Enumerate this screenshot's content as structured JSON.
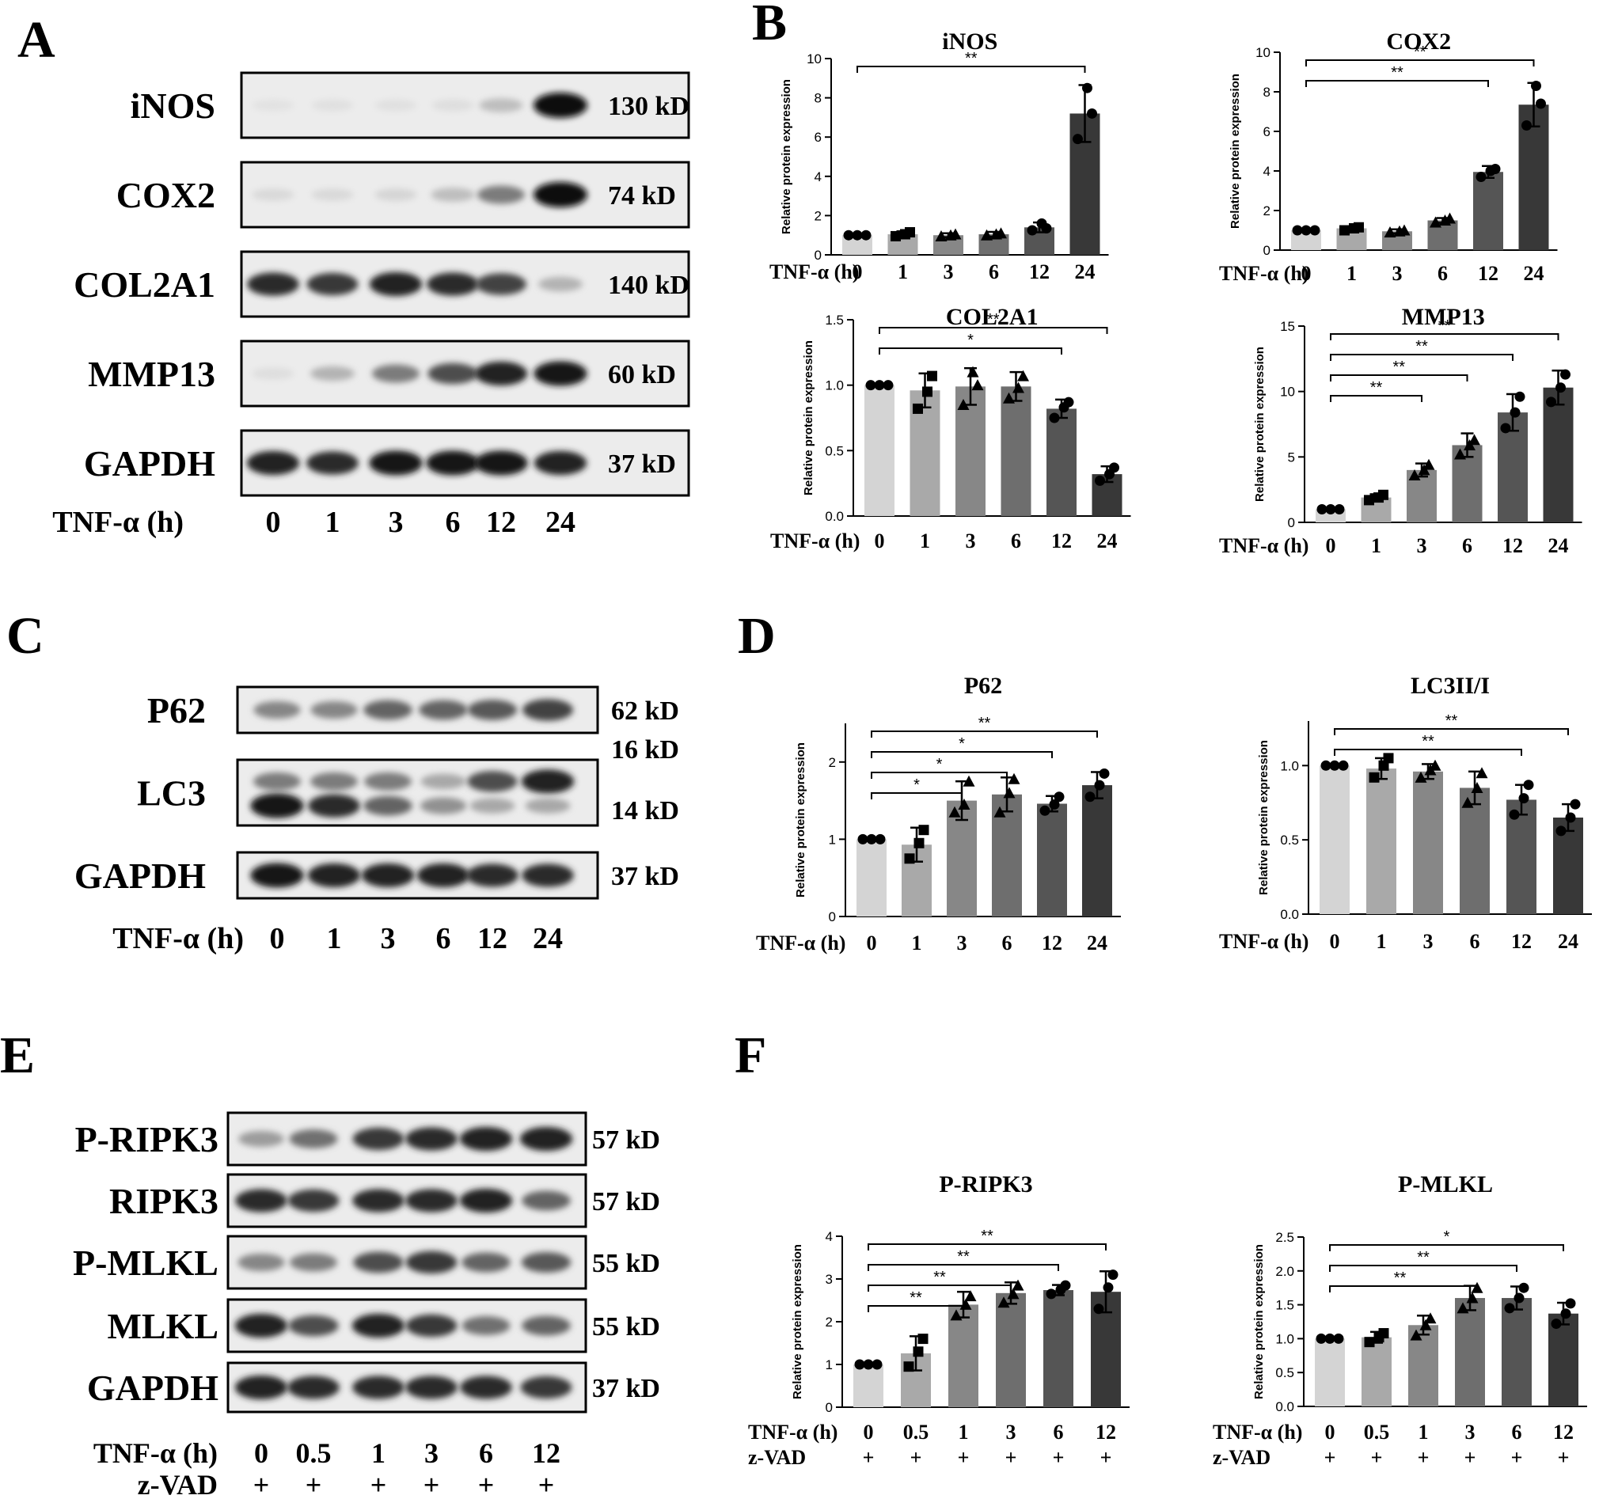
{
  "panel_letters": [
    "A",
    "B",
    "C",
    "D",
    "E",
    "F"
  ],
  "blots": [
    {
      "panel": "A",
      "rows": [
        {
          "label": "iNOS",
          "mw": [
            "130 kD"
          ],
          "bands": [
            [
              0.04,
              0.05,
              0.05,
              0.06,
              0.2,
              1.0
            ]
          ]
        },
        {
          "label": "COX2",
          "mw": [
            "74 kD"
          ],
          "bands": [
            [
              0.08,
              0.08,
              0.1,
              0.2,
              0.5,
              1.0
            ]
          ]
        },
        {
          "label": "COL2A1",
          "mw": [
            "140 kD"
          ],
          "bands": [
            [
              0.85,
              0.8,
              0.9,
              0.85,
              0.75,
              0.25
            ]
          ]
        },
        {
          "label": "MMP13",
          "mw": [
            "60 kD"
          ],
          "bands": [
            [
              0.06,
              0.25,
              0.5,
              0.7,
              0.9,
              0.95
            ]
          ]
        },
        {
          "label": "GAPDH",
          "mw": [
            "37 kD"
          ],
          "bands": [
            [
              0.9,
              0.85,
              0.95,
              0.95,
              0.95,
              0.9
            ]
          ]
        }
      ],
      "axis_labels": [
        {
          "name": "TNF-α (h)",
          "values": [
            "0",
            "1",
            "3",
            "6",
            "12",
            "24"
          ]
        }
      ]
    },
    {
      "panel": "C",
      "rows": [
        {
          "label": "P62",
          "mw": [
            "62 kD"
          ],
          "bands": [
            [
              0.45,
              0.45,
              0.6,
              0.6,
              0.65,
              0.75
            ]
          ]
        },
        {
          "label": "LC3",
          "mw": [
            "16 kD",
            "14 kD"
          ],
          "bands": [
            [
              0.5,
              0.5,
              0.5,
              0.3,
              0.7,
              0.9
            ],
            [
              0.95,
              0.85,
              0.6,
              0.4,
              0.3,
              0.3
            ]
          ]
        },
        {
          "label": "GAPDH",
          "mw": [
            "37 kD"
          ],
          "bands": [
            [
              0.95,
              0.9,
              0.9,
              0.9,
              0.85,
              0.85
            ]
          ]
        }
      ],
      "axis_labels": [
        {
          "name": "TNF-α (h)",
          "values": [
            "0",
            "1",
            "3",
            "6",
            "12",
            "24"
          ]
        }
      ]
    },
    {
      "panel": "E",
      "rows": [
        {
          "label": "P-RIPK3",
          "mw": [
            "57 kD"
          ],
          "bands": [
            [
              0.35,
              0.55,
              0.8,
              0.85,
              0.9,
              0.9
            ]
          ]
        },
        {
          "label": "RIPK3",
          "mw": [
            "57 kD"
          ],
          "bands": [
            [
              0.85,
              0.8,
              0.85,
              0.85,
              0.9,
              0.6
            ]
          ]
        },
        {
          "label": "P-MLKL",
          "mw": [
            "55 kD"
          ],
          "bands": [
            [
              0.45,
              0.5,
              0.7,
              0.8,
              0.6,
              0.65
            ]
          ]
        },
        {
          "label": "MLKL",
          "mw": [
            "55 kD"
          ],
          "bands": [
            [
              0.9,
              0.7,
              0.9,
              0.8,
              0.55,
              0.6
            ]
          ]
        },
        {
          "label": "GAPDH",
          "mw": [
            "37 kD"
          ],
          "bands": [
            [
              0.9,
              0.85,
              0.85,
              0.85,
              0.85,
              0.8
            ]
          ]
        }
      ],
      "axis_labels": [
        {
          "name": "TNF-α (h)",
          "values": [
            "0",
            "0.5",
            "1",
            "3",
            "6",
            "12"
          ]
        },
        {
          "name": "z-VAD",
          "values": [
            "+",
            "+",
            "+",
            "+",
            "+",
            "+"
          ]
        }
      ]
    }
  ],
  "chart_data": [
    {
      "id": "inos",
      "type": "bar",
      "title": "iNOS",
      "ylabel": "Relative protein expression",
      "ylim": [
        0,
        10
      ],
      "yticks": [
        0,
        2,
        4,
        6,
        8,
        10
      ],
      "categories": [
        "0",
        "1",
        "3",
        "6",
        "12",
        "24"
      ],
      "values": [
        1.0,
        1.05,
        1.0,
        1.05,
        1.4,
        7.2
      ],
      "errors": [
        0.0,
        0.15,
        0.1,
        0.12,
        0.25,
        1.45
      ],
      "points": [
        [
          1,
          1,
          1
        ],
        [
          0.95,
          1.15,
          1.05
        ],
        [
          0.95,
          1.05,
          1.0
        ],
        [
          1.0,
          1.1,
          1.05
        ],
        [
          1.25,
          1.35,
          1.6
        ],
        [
          5.9,
          7.2,
          8.5
        ]
      ],
      "marker": [
        "circle",
        "square",
        "triangle",
        "triangle",
        "circle",
        "circle"
      ],
      "x_rows": [
        {
          "label": "TNF-α (h)",
          "values": [
            "0",
            "1",
            "3",
            "6",
            "12",
            "24"
          ]
        }
      ],
      "significance": [
        {
          "from": 0,
          "to": 5,
          "label": "**"
        }
      ]
    },
    {
      "id": "cox2",
      "type": "bar",
      "title": "COX2",
      "ylabel": "Relative protein expression",
      "ylim": [
        0,
        10
      ],
      "yticks": [
        0,
        2,
        4,
        6,
        8,
        10
      ],
      "categories": [
        "0",
        "1",
        "3",
        "6",
        "12",
        "24"
      ],
      "values": [
        1.0,
        1.1,
        0.95,
        1.5,
        3.95,
        7.35
      ],
      "errors": [
        0.0,
        0.1,
        0.1,
        0.12,
        0.3,
        1.1
      ],
      "points": [
        [
          1,
          1,
          1
        ],
        [
          1.0,
          1.15,
          1.1
        ],
        [
          0.9,
          1.0,
          0.95
        ],
        [
          1.4,
          1.6,
          1.5
        ],
        [
          3.7,
          4.1,
          4.0
        ],
        [
          6.3,
          7.4,
          8.3
        ]
      ],
      "marker": [
        "circle",
        "square",
        "triangle",
        "triangle",
        "circle",
        "circle"
      ],
      "x_rows": [
        {
          "label": "TNF-α (h)",
          "values": [
            "0",
            "1",
            "3",
            "6",
            "12",
            "24"
          ]
        }
      ],
      "significance": [
        {
          "from": 0,
          "to": 4,
          "label": "**"
        },
        {
          "from": 0,
          "to": 5,
          "label": "**"
        }
      ]
    },
    {
      "id": "col2a1",
      "type": "bar",
      "title": "COL2A1",
      "ylabel": "Relative protein expression",
      "ylim": [
        0,
        1.5
      ],
      "yticks": [
        0.0,
        0.5,
        1.0,
        1.5
      ],
      "categories": [
        "0",
        "1",
        "3",
        "6",
        "12",
        "24"
      ],
      "values": [
        1.0,
        0.96,
        0.99,
        0.99,
        0.82,
        0.32
      ],
      "errors": [
        0.0,
        0.13,
        0.14,
        0.11,
        0.07,
        0.06
      ],
      "points": [
        [
          1,
          1,
          1
        ],
        [
          0.82,
          1.07,
          0.95
        ],
        [
          0.85,
          1.0,
          1.1
        ],
        [
          0.9,
          1.07,
          0.98
        ],
        [
          0.75,
          0.87,
          0.83
        ],
        [
          0.27,
          0.37,
          0.32
        ]
      ],
      "marker": [
        "circle",
        "square",
        "triangle",
        "triangle",
        "circle",
        "circle"
      ],
      "x_rows": [
        {
          "label": "TNF-α (h)",
          "values": [
            "0",
            "1",
            "3",
            "6",
            "12",
            "24"
          ]
        }
      ],
      "significance": [
        {
          "from": 0,
          "to": 4,
          "label": "*"
        },
        {
          "from": 0,
          "to": 5,
          "label": "**"
        }
      ]
    },
    {
      "id": "mmp13",
      "type": "bar",
      "title": "MMP13",
      "ylabel": "Relative protein expression",
      "ylim": [
        0,
        15
      ],
      "yticks": [
        0,
        5,
        10,
        15
      ],
      "categories": [
        "0",
        "1",
        "3",
        "6",
        "12",
        "24"
      ],
      "values": [
        1.0,
        1.9,
        4.0,
        5.9,
        8.4,
        10.3
      ],
      "errors": [
        0.0,
        0.25,
        0.5,
        0.9,
        1.4,
        1.3
      ],
      "points": [
        [
          1,
          1,
          1
        ],
        [
          1.7,
          2.1,
          1.9
        ],
        [
          3.6,
          4.4,
          4.0
        ],
        [
          5.2,
          6.3,
          5.9
        ],
        [
          7.2,
          9.6,
          8.4
        ],
        [
          9.2,
          11.3,
          10.3
        ]
      ],
      "marker": [
        "circle",
        "square",
        "triangle",
        "triangle",
        "circle",
        "circle"
      ],
      "x_rows": [
        {
          "label": "TNF-α (h)",
          "values": [
            "0",
            "1",
            "3",
            "6",
            "12",
            "24"
          ]
        }
      ],
      "significance": [
        {
          "from": 0,
          "to": 2,
          "label": "**"
        },
        {
          "from": 0,
          "to": 3,
          "label": "**"
        },
        {
          "from": 0,
          "to": 4,
          "label": "**"
        },
        {
          "from": 0,
          "to": 5,
          "label": "**"
        }
      ]
    },
    {
      "id": "p62",
      "type": "bar",
      "title": "P62",
      "ylabel": "Relative protein expression",
      "ylim": [
        0,
        2.5
      ],
      "yticks": [
        0,
        1,
        2
      ],
      "categories": [
        "0",
        "1",
        "3",
        "6",
        "12",
        "24"
      ],
      "values": [
        1.0,
        0.93,
        1.5,
        1.58,
        1.46,
        1.7
      ],
      "errors": [
        0.0,
        0.22,
        0.25,
        0.22,
        0.1,
        0.17
      ],
      "points": [
        [
          1,
          1,
          1
        ],
        [
          0.75,
          1.12,
          0.95
        ],
        [
          1.35,
          1.75,
          1.45
        ],
        [
          1.35,
          1.78,
          1.6
        ],
        [
          1.37,
          1.55,
          1.45
        ],
        [
          1.55,
          1.85,
          1.7
        ]
      ],
      "marker": [
        "circle",
        "square",
        "triangle",
        "triangle",
        "circle",
        "circle"
      ],
      "x_rows": [
        {
          "label": "TNF-α (h)",
          "values": [
            "0",
            "1",
            "3",
            "6",
            "12",
            "24"
          ]
        }
      ],
      "significance": [
        {
          "from": 0,
          "to": 2,
          "label": "*"
        },
        {
          "from": 0,
          "to": 3,
          "label": "*"
        },
        {
          "from": 0,
          "to": 4,
          "label": "*"
        },
        {
          "from": 0,
          "to": 5,
          "label": "**"
        }
      ]
    },
    {
      "id": "lc3",
      "type": "bar",
      "title": "LC3II/I",
      "ylabel": "Relative protein expression",
      "ylim": [
        0,
        1.3
      ],
      "yticks": [
        0.0,
        0.5,
        1.0
      ],
      "categories": [
        "0",
        "1",
        "3",
        "6",
        "12",
        "24"
      ],
      "values": [
        1.0,
        0.98,
        0.96,
        0.85,
        0.77,
        0.65
      ],
      "errors": [
        0.0,
        0.07,
        0.05,
        0.11,
        0.1,
        0.09
      ],
      "points": [
        [
          1,
          1,
          1
        ],
        [
          0.92,
          1.05,
          1.0
        ],
        [
          0.92,
          1.0,
          0.97
        ],
        [
          0.75,
          0.95,
          0.85
        ],
        [
          0.67,
          0.87,
          0.78
        ],
        [
          0.56,
          0.74,
          0.65
        ]
      ],
      "marker": [
        "circle",
        "square",
        "triangle",
        "triangle",
        "circle",
        "circle"
      ],
      "x_rows": [
        {
          "label": "TNF-α (h)",
          "values": [
            "0",
            "1",
            "3",
            "6",
            "12",
            "24"
          ]
        }
      ],
      "significance": [
        {
          "from": 0,
          "to": 4,
          "label": "**"
        },
        {
          "from": 0,
          "to": 5,
          "label": "**"
        }
      ]
    },
    {
      "id": "pripk3",
      "type": "bar",
      "title": "P-RIPK3",
      "ylabel": "Relative protein expression",
      "ylim": [
        0,
        4
      ],
      "yticks": [
        0,
        1,
        2,
        3,
        4
      ],
      "categories": [
        "0",
        "0.5",
        "1",
        "3",
        "6",
        "12"
      ],
      "values": [
        1.0,
        1.26,
        2.4,
        2.67,
        2.74,
        2.7
      ],
      "errors": [
        0.0,
        0.4,
        0.3,
        0.25,
        0.12,
        0.48
      ],
      "points": [
        [
          1,
          1,
          1
        ],
        [
          0.95,
          1.6,
          1.3
        ],
        [
          2.15,
          2.6,
          2.4
        ],
        [
          2.45,
          2.85,
          2.65
        ],
        [
          2.65,
          2.85,
          2.75
        ],
        [
          2.3,
          3.1,
          2.8
        ]
      ],
      "marker": [
        "circle",
        "square",
        "triangle",
        "triangle",
        "circle",
        "circle"
      ],
      "x_rows": [
        {
          "label": "TNF-α (h)",
          "values": [
            "0",
            "0.5",
            "1",
            "3",
            "6",
            "12"
          ]
        },
        {
          "label": "z-VAD",
          "values": [
            "+",
            "+",
            "+",
            "+",
            "+",
            "+"
          ]
        }
      ],
      "significance": [
        {
          "from": 0,
          "to": 2,
          "label": "**"
        },
        {
          "from": 0,
          "to": 3,
          "label": "**"
        },
        {
          "from": 0,
          "to": 4,
          "label": "**"
        },
        {
          "from": 0,
          "to": 5,
          "label": "**"
        }
      ]
    },
    {
      "id": "pmlkl",
      "type": "bar",
      "title": "P-MLKL",
      "ylabel": "Relative protein expression",
      "ylim": [
        0,
        2.5
      ],
      "yticks": [
        0.0,
        0.5,
        1.0,
        1.5,
        2.0,
        2.5
      ],
      "categories": [
        "0",
        "0.5",
        "1",
        "3",
        "6",
        "12"
      ],
      "values": [
        1.0,
        1.02,
        1.2,
        1.6,
        1.6,
        1.37
      ],
      "errors": [
        0.0,
        0.08,
        0.14,
        0.18,
        0.17,
        0.16
      ],
      "points": [
        [
          1,
          1,
          1
        ],
        [
          0.95,
          1.08,
          1.02
        ],
        [
          1.05,
          1.3,
          1.2
        ],
        [
          1.45,
          1.75,
          1.6
        ],
        [
          1.45,
          1.75,
          1.6
        ],
        [
          1.22,
          1.52,
          1.37
        ]
      ],
      "marker": [
        "circle",
        "square",
        "triangle",
        "triangle",
        "circle",
        "circle"
      ],
      "x_rows": [
        {
          "label": "TNF-α (h)",
          "values": [
            "0",
            "0.5",
            "1",
            "3",
            "6",
            "12"
          ]
        },
        {
          "label": "z-VAD",
          "values": [
            "+",
            "+",
            "+",
            "+",
            "+",
            "+"
          ]
        }
      ],
      "significance": [
        {
          "from": 0,
          "to": 3,
          "label": "**"
        },
        {
          "from": 0,
          "to": 4,
          "label": "**"
        },
        {
          "from": 0,
          "to": 5,
          "label": "*"
        }
      ]
    }
  ]
}
